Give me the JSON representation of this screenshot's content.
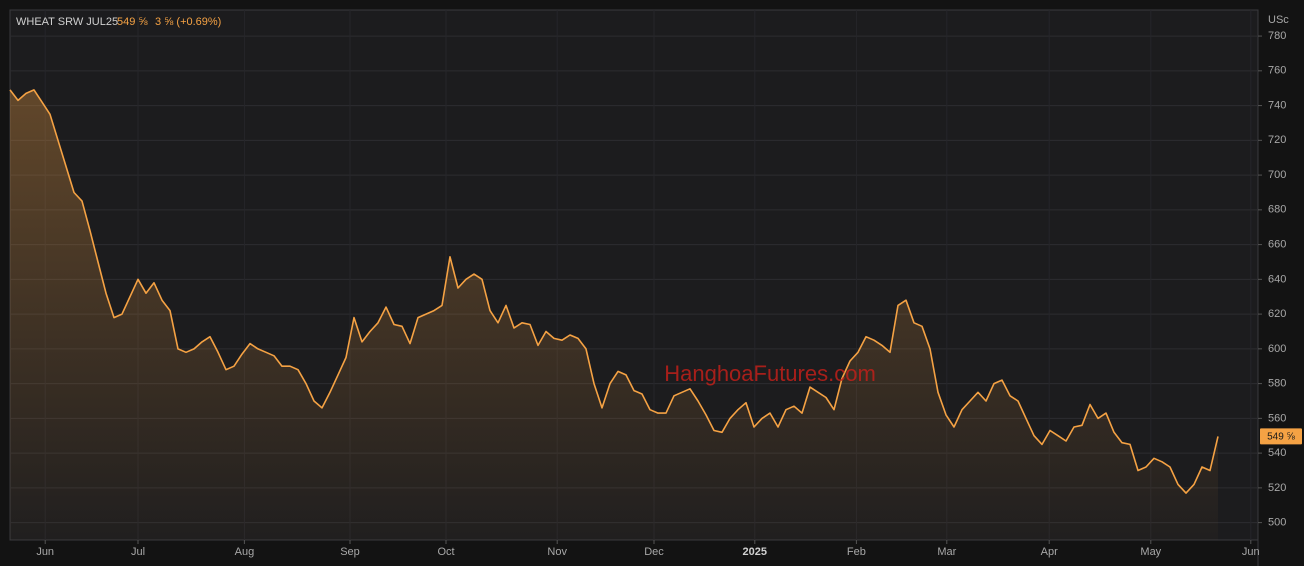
{
  "header": {
    "symbol": "WHEAT SRW JUL25",
    "price": "549 ⅝",
    "change": "3 ⅝ (+0.69%)",
    "watermark": "HanghoaFutures.com"
  },
  "chart_data": {
    "type": "line",
    "y_unit": "USc",
    "series": [
      {
        "name": "WHEAT SRW JUL25",
        "color": "#f5a244",
        "values": [
          749,
          743,
          747,
          749,
          742,
          735,
          720,
          705,
          690,
          685,
          668,
          650,
          632,
          618,
          620,
          630,
          640,
          632,
          638,
          628,
          622,
          600,
          598,
          600,
          604,
          607,
          598,
          588,
          590,
          597,
          603,
          600,
          598,
          596,
          590,
          590,
          588,
          580,
          570,
          566,
          575,
          585,
          595,
          618,
          604,
          610,
          615,
          624,
          614,
          613,
          603,
          618,
          620,
          622,
          625,
          653,
          635,
          640,
          643,
          640,
          622,
          615,
          625,
          612,
          615,
          614,
          602,
          610,
          606,
          605,
          608,
          606,
          600,
          580,
          566,
          580,
          587,
          585,
          576,
          574,
          565,
          563,
          563,
          573,
          575,
          577,
          570,
          562,
          553,
          552,
          560,
          565,
          569,
          555,
          560,
          563,
          555,
          565,
          567,
          563,
          578,
          575,
          572,
          565,
          583,
          593,
          598,
          607,
          605,
          602,
          598,
          625,
          628,
          615,
          613,
          600,
          575,
          562,
          555,
          565,
          570,
          575,
          570,
          580,
          582,
          573,
          570,
          560,
          550,
          545,
          553,
          550,
          547,
          555,
          556,
          568,
          560,
          563,
          552,
          546,
          545,
          530,
          532,
          537,
          535,
          532,
          522,
          517,
          522,
          532,
          530,
          549.625
        ]
      }
    ],
    "xlim": [
      0,
      156
    ],
    "xticks": [
      {
        "value": 4.4,
        "label": "Jun"
      },
      {
        "value": 16,
        "label": "Jul"
      },
      {
        "value": 29.3,
        "label": "Aug"
      },
      {
        "value": 42.5,
        "label": "Sep"
      },
      {
        "value": 54.5,
        "label": "Oct"
      },
      {
        "value": 68.4,
        "label": "Nov"
      },
      {
        "value": 80.5,
        "label": "Dec"
      },
      {
        "value": 93.1,
        "label": "2025"
      },
      {
        "value": 105.8,
        "label": "Feb"
      },
      {
        "value": 117.1,
        "label": "Mar"
      },
      {
        "value": 129.9,
        "label": "Apr"
      },
      {
        "value": 142.6,
        "label": "May"
      },
      {
        "value": 155.1,
        "label": "Jun"
      }
    ],
    "ylim": [
      490,
      795
    ],
    "yticks": [
      500,
      520,
      540,
      560,
      580,
      600,
      620,
      640,
      660,
      680,
      700,
      720,
      740,
      760,
      780
    ],
    "grid": true
  }
}
